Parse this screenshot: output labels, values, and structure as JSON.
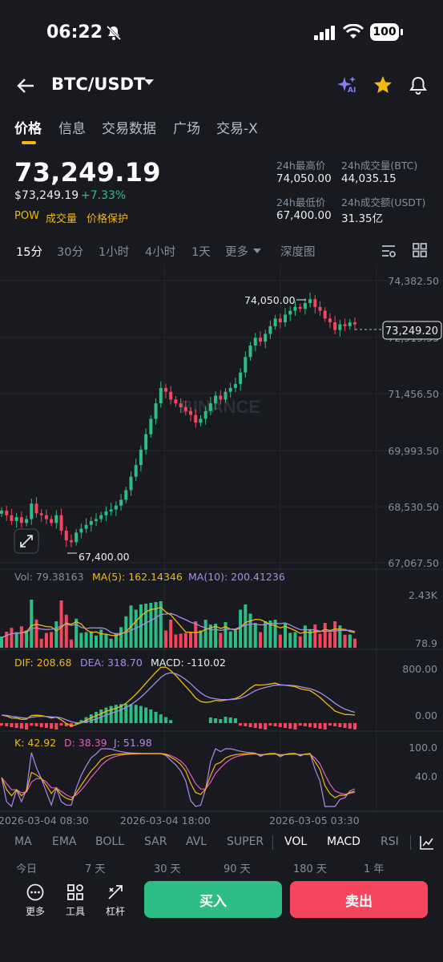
{
  "status_bar": {
    "time": "06:22",
    "battery": "100"
  },
  "header": {
    "pair": "BTC/USDT",
    "ai_badge": "AI"
  },
  "tabs": [
    "价格",
    "信息",
    "交易数据",
    "广场",
    "交易-X"
  ],
  "price": {
    "last": "73,249.19",
    "usd": "$73,249.19",
    "change": "+7.33%",
    "tags": [
      "POW",
      "成交量",
      "价格保护"
    ]
  },
  "stats": {
    "high_label": "24h最高价",
    "high_value": "74,050.00",
    "vol_btc_label": "24h成交量(BTC)",
    "vol_btc_value": "44,035.15",
    "low_label": "24h最低价",
    "low_value": "67,400.00",
    "vol_usdt_label": "24h成交额(USDT)",
    "vol_usdt_value": "31.35亿"
  },
  "intervals": [
    "15分",
    "30分",
    "1小时",
    "4小时",
    "1天",
    "更多",
    "深度图"
  ],
  "chart": {
    "watermark": "BINANCE",
    "price_axis": [
      "74,382.50",
      "72,919.55",
      "71,456.50",
      "69,993.50",
      "68,530.50",
      "67,067.50"
    ],
    "current_price": "73,249.20",
    "high_marker": "74,050.00",
    "low_marker": "67,400.00",
    "vol_legend": {
      "vol": "Vol: 79.38163",
      "ma5": "MA(5): 162.14346",
      "ma10": "MA(10): 200.41236"
    },
    "vol_axis": [
      "2.43K",
      "78.9"
    ],
    "macd_legend": {
      "dif": "DIF: 208.68",
      "dea": "DEA: 318.70",
      "macd": "MACD: -110.02"
    },
    "macd_axis": [
      "800.00",
      "0.00"
    ],
    "kdj_legend": {
      "k": "K: 42.92",
      "d": "D: 38.39",
      "j": "J: 51.98"
    },
    "kdj_axis": [
      "100.0",
      "40.0"
    ],
    "time_axis": [
      "2026-03-04 08:30",
      "2026-03-04 18:00",
      "2026-03-05 03:30"
    ]
  },
  "indicators": [
    "MA",
    "EMA",
    "BOLL",
    "SAR",
    "AVL",
    "SUPER",
    "VOL",
    "MACD",
    "RSI"
  ],
  "periods": [
    "今日",
    "7 天",
    "30 天",
    "90 天",
    "180 天",
    "1 年"
  ],
  "bottom": {
    "more": "更多",
    "tools": "工具",
    "leverage": "杠杆",
    "buy": "买入",
    "sell": "卖出"
  },
  "colors": {
    "up": "#2ebd85",
    "down": "#f6465d",
    "accent": "#f0b90b",
    "bg": "#181a20"
  },
  "chart_data": {
    "type": "candlestick",
    "ylim": [
      67067.5,
      74382.5
    ],
    "high": 74050.0,
    "low": 67400.0,
    "last": 73249.2,
    "closes": [
      68420,
      68300,
      68150,
      68250,
      68100,
      68200,
      68600,
      68350,
      68300,
      68200,
      68100,
      68300,
      67900,
      67650,
      67600,
      67850,
      67950,
      68050,
      68150,
      68200,
      68300,
      68400,
      68450,
      68550,
      68700,
      68950,
      69300,
      69600,
      70000,
      70400,
      70800,
      71200,
      71600,
      71500,
      71300,
      71200,
      71100,
      71000,
      70900,
      70700,
      70800,
      71000,
      71200,
      71400,
      71300,
      71500,
      71600,
      71700,
      72000,
      72400,
      72700,
      72900,
      72800,
      73000,
      73200,
      73400,
      73300,
      73500,
      73600,
      73700,
      73650,
      73800,
      73900,
      73700,
      73600,
      73400,
      73300,
      73100,
      73250,
      73200,
      73300,
      73249
    ]
  }
}
